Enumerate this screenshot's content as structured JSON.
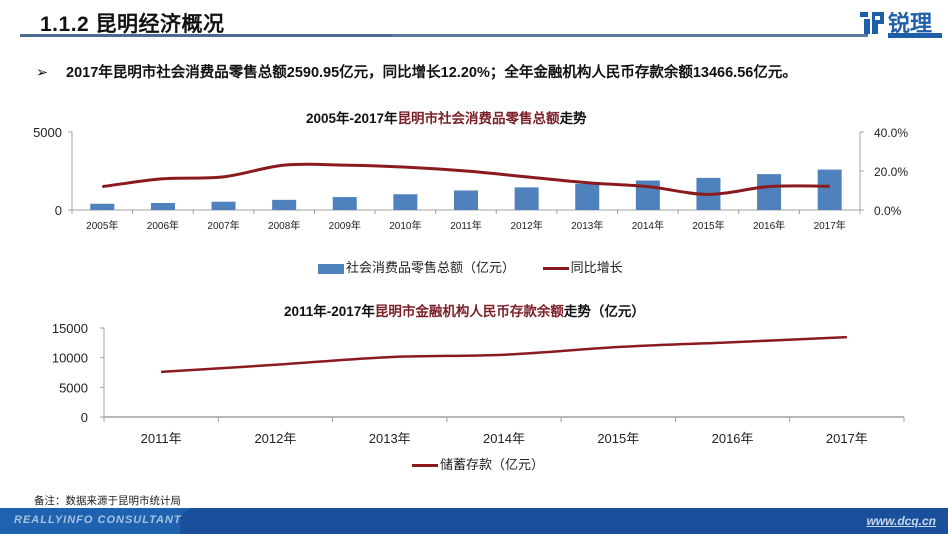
{
  "header": {
    "title": "1.1.2 昆明经济概况",
    "logo_text": "锐理"
  },
  "bullet": {
    "arrow": "➢",
    "text": "2017年昆明市社会消费品零售总额2590.95亿元，同比增长12.20%；全年金融机构人民币存款余额13466.56亿元。"
  },
  "colors": {
    "bar": "#4f81bd",
    "line": "#8b1a1f",
    "title_highlight": "#7b1f28",
    "footer": "#1a4f9c"
  },
  "chart_data": [
    {
      "type": "bar",
      "title_prefix": "2005年-2017年",
      "title_highlight": "昆明市社会消费品零售总额",
      "title_suffix": "走势",
      "categories": [
        "2005年",
        "2006年",
        "2007年",
        "2008年",
        "2009年",
        "2010年",
        "2011年",
        "2012年",
        "2013年",
        "2014年",
        "2015年",
        "2016年",
        "2017年"
      ],
      "series": [
        {
          "name": "社会消费品零售总额（亿元）",
          "type": "bar",
          "axis": "left",
          "values": [
            400,
            450,
            530,
            650,
            830,
            1010,
            1250,
            1450,
            1680,
            1890,
            2060,
            2300,
            2590.95
          ]
        },
        {
          "name": "同比增长",
          "type": "line",
          "axis": "right",
          "values": [
            12.0,
            16.0,
            17.0,
            23.0,
            23.0,
            22.0,
            20.0,
            17.0,
            14.0,
            12.0,
            8.0,
            12.0,
            12.2
          ]
        }
      ],
      "ylim": [
        0,
        5000
      ],
      "y_ticks": [
        "0",
        "5000"
      ],
      "y2lim": [
        0,
        40
      ],
      "y2_ticks": [
        "0.0%",
        "20.0%",
        "40.0%"
      ],
      "legend": "bottom",
      "grid": false
    },
    {
      "type": "line",
      "title_prefix": "2011年-2017年",
      "title_highlight": "昆明市金融机构人民币存款余额",
      "title_suffix": "走势（亿元）",
      "categories": [
        "2011年",
        "2012年",
        "2013年",
        "2014年",
        "2015年",
        "2016年",
        "2017年"
      ],
      "series": [
        {
          "name": "储蓄存款（亿元）",
          "values": [
            7600,
            8800,
            10100,
            10500,
            11800,
            12600,
            13466.56
          ]
        }
      ],
      "ylim": [
        0,
        15000
      ],
      "y_ticks": [
        "0",
        "5000",
        "10000",
        "15000"
      ],
      "legend": "bottom",
      "grid": false
    }
  ],
  "note": "备注：数据来源于昆明市统计局",
  "footer": {
    "brand": "REALLYINFO CONSULTANT",
    "url": "www.dcq.cn"
  }
}
